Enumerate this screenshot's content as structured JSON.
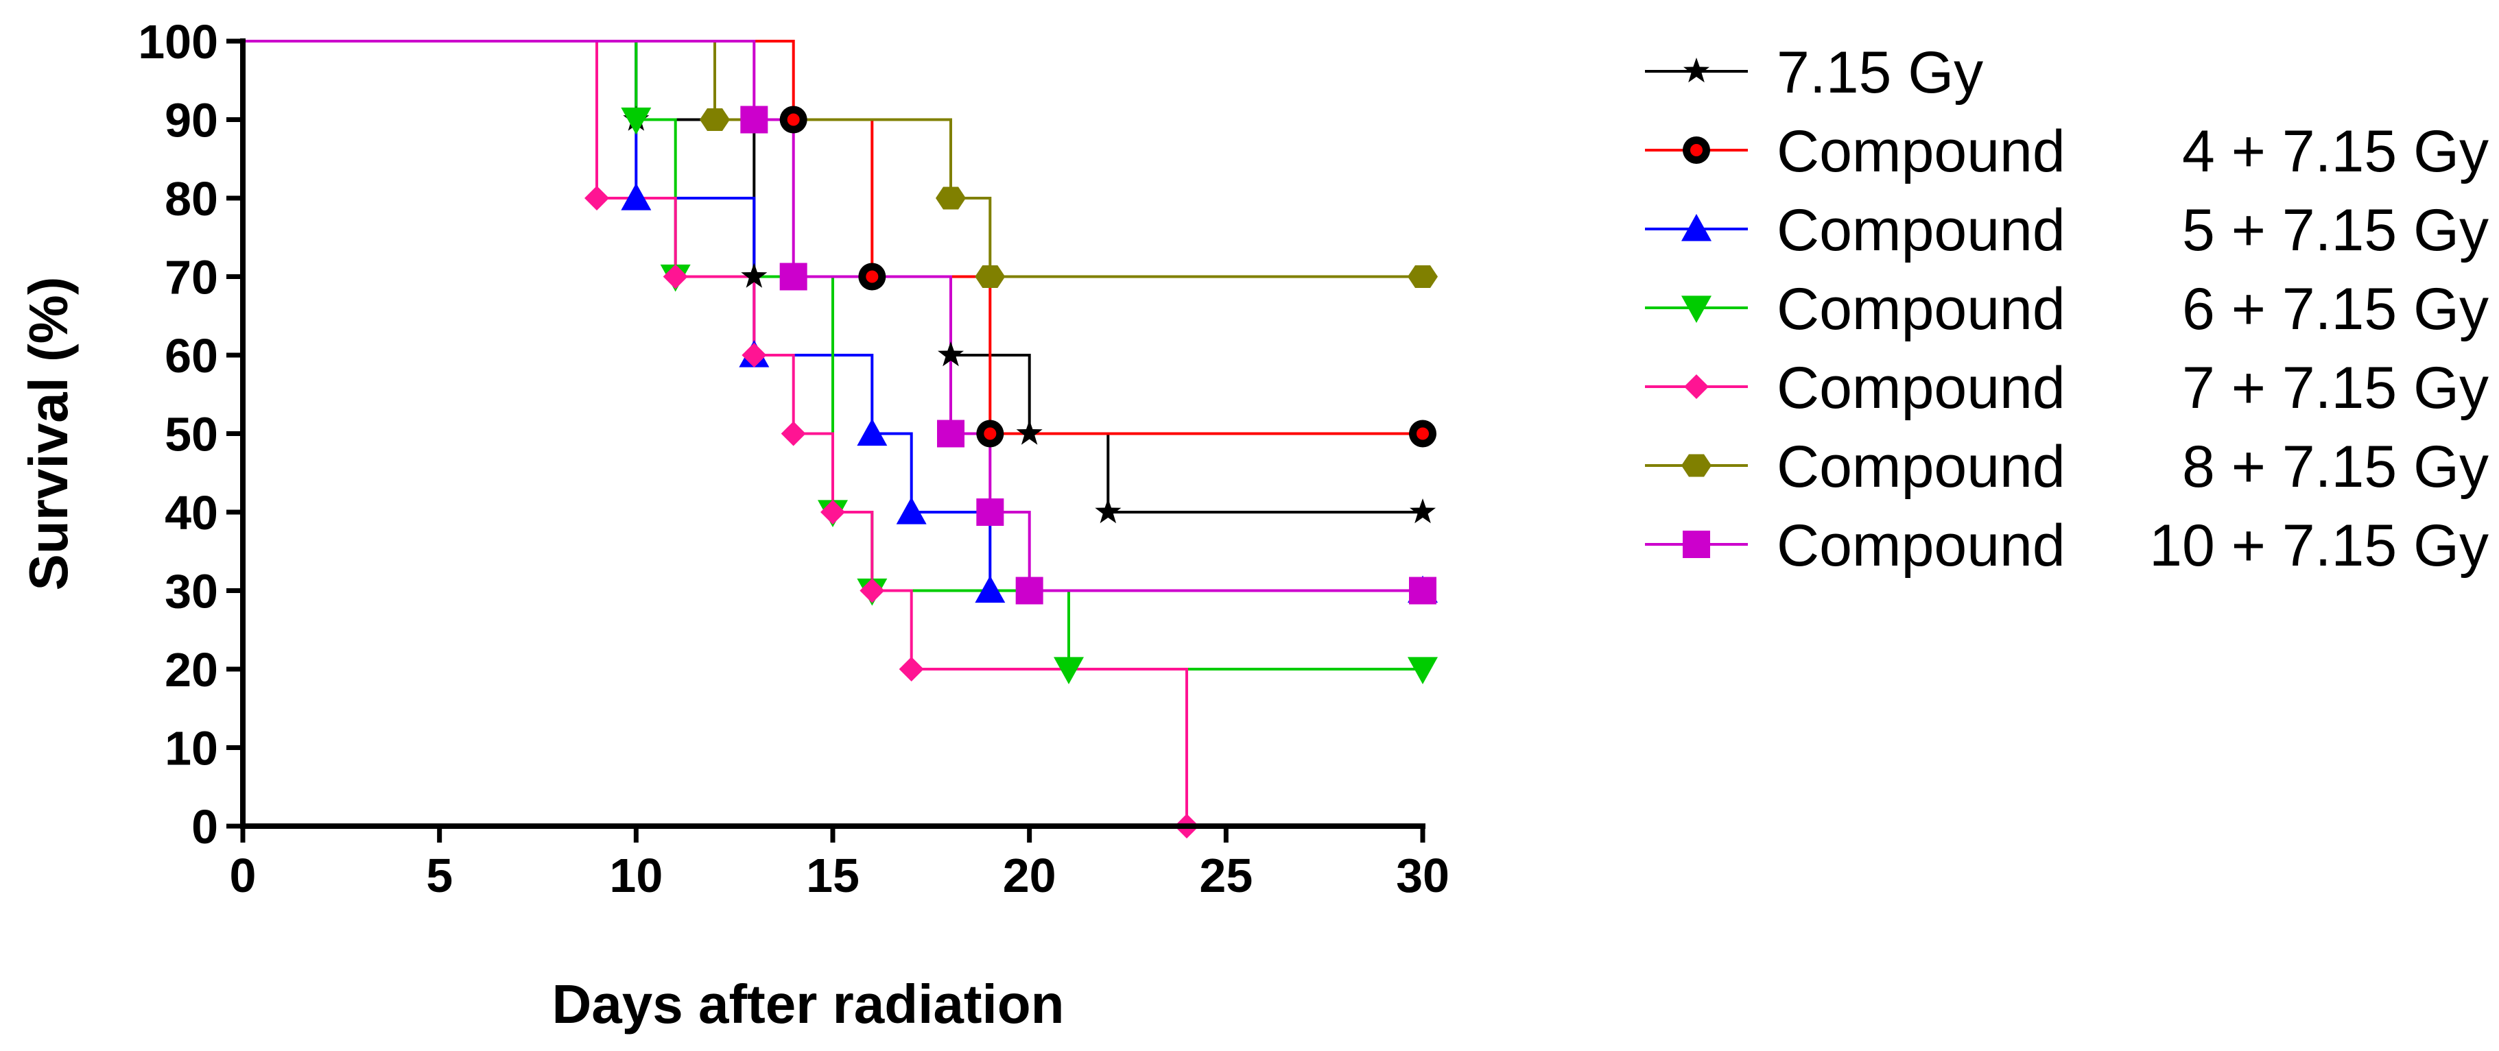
{
  "chart_data": {
    "type": "line",
    "subtype": "kaplan-meier step survival curve",
    "title": "",
    "xlabel": "Days after radiation",
    "ylabel": "Survival (%)",
    "xlim": [
      0,
      30
    ],
    "ylim": [
      0,
      100
    ],
    "xticks": [
      0,
      5,
      10,
      15,
      20,
      25,
      30
    ],
    "yticks": [
      0,
      10,
      20,
      30,
      40,
      50,
      60,
      70,
      80,
      90,
      100
    ],
    "grid": false,
    "legend_position": "right",
    "series": [
      {
        "name": "7.15 Gy",
        "legend_prefix": "7.15 Gy",
        "legend_suffix": "",
        "color": "#000000",
        "marker": "star",
        "steps": [
          [
            0,
            100
          ],
          [
            10,
            90
          ],
          [
            13,
            70
          ],
          [
            18,
            60
          ],
          [
            20,
            50
          ],
          [
            22,
            40
          ],
          [
            30,
            40
          ]
        ],
        "markers": [
          [
            10,
            90
          ],
          [
            13,
            70
          ],
          [
            18,
            60
          ],
          [
            20,
            50
          ],
          [
            22,
            40
          ],
          [
            30,
            40
          ]
        ]
      },
      {
        "name": "Compound 4 + 7.15 Gy",
        "legend_prefix": "Compound",
        "legend_suffix": "4 + 7.15 Gy",
        "color": "#ff0000",
        "marker": "circle",
        "steps": [
          [
            0,
            100
          ],
          [
            14,
            90
          ],
          [
            16,
            70
          ],
          [
            19,
            50
          ],
          [
            30,
            50
          ]
        ],
        "markers": [
          [
            14,
            90
          ],
          [
            16,
            70
          ],
          [
            19,
            50
          ],
          [
            30,
            50
          ]
        ]
      },
      {
        "name": "Compound 5 + 7.15 Gy",
        "legend_prefix": "Compound",
        "legend_suffix": "5 + 7.15 Gy",
        "color": "#0000ff",
        "marker": "triangle-up",
        "steps": [
          [
            0,
            100
          ],
          [
            10,
            80
          ],
          [
            13,
            60
          ],
          [
            16,
            50
          ],
          [
            17,
            40
          ],
          [
            19,
            30
          ],
          [
            30,
            30
          ]
        ],
        "markers": [
          [
            10,
            80
          ],
          [
            13,
            60
          ],
          [
            16,
            50
          ],
          [
            17,
            40
          ],
          [
            19,
            30
          ],
          [
            30,
            30
          ]
        ]
      },
      {
        "name": "Compound 6 + 7.15 Gy",
        "legend_prefix": "Compound",
        "legend_suffix": "6 + 7.15 Gy",
        "color": "#00cc00",
        "marker": "triangle-down",
        "steps": [
          [
            0,
            100
          ],
          [
            10,
            90
          ],
          [
            11,
            70
          ],
          [
            15,
            40
          ],
          [
            16,
            30
          ],
          [
            21,
            20
          ],
          [
            30,
            20
          ]
        ],
        "markers": [
          [
            10,
            90
          ],
          [
            11,
            70
          ],
          [
            15,
            40
          ],
          [
            16,
            30
          ],
          [
            21,
            20
          ],
          [
            30,
            20
          ]
        ]
      },
      {
        "name": "Compound 7 + 7.15 Gy",
        "legend_prefix": "Compound",
        "legend_suffix": "7 + 7.15 Gy",
        "color": "#ff1493",
        "marker": "diamond",
        "steps": [
          [
            0,
            100
          ],
          [
            9,
            80
          ],
          [
            11,
            70
          ],
          [
            13,
            60
          ],
          [
            14,
            50
          ],
          [
            15,
            40
          ],
          [
            16,
            30
          ],
          [
            17,
            20
          ],
          [
            24,
            0
          ]
        ],
        "markers": [
          [
            9,
            80
          ],
          [
            11,
            70
          ],
          [
            13,
            60
          ],
          [
            14,
            50
          ],
          [
            15,
            40
          ],
          [
            16,
            30
          ],
          [
            17,
            20
          ],
          [
            24,
            0
          ]
        ]
      },
      {
        "name": "Compound 8 + 7.15 Gy",
        "legend_prefix": "Compound",
        "legend_suffix": "8 + 7.15 Gy",
        "color": "#808000",
        "marker": "hexagon",
        "steps": [
          [
            0,
            100
          ],
          [
            12,
            90
          ],
          [
            18,
            80
          ],
          [
            19,
            70
          ],
          [
            30,
            70
          ]
        ],
        "markers": [
          [
            12,
            90
          ],
          [
            18,
            80
          ],
          [
            19,
            70
          ],
          [
            30,
            70
          ]
        ]
      },
      {
        "name": "Compound 10 + 7.15 Gy",
        "legend_prefix": "Compound",
        "legend_suffix": "10 + 7.15 Gy",
        "color": "#cc00cc",
        "marker": "square",
        "steps": [
          [
            0,
            100
          ],
          [
            13,
            90
          ],
          [
            14,
            70
          ],
          [
            18,
            50
          ],
          [
            19,
            40
          ],
          [
            20,
            30
          ],
          [
            30,
            30
          ]
        ],
        "markers": [
          [
            13,
            90
          ],
          [
            14,
            70
          ],
          [
            18,
            50
          ],
          [
            19,
            40
          ],
          [
            20,
            30
          ],
          [
            30,
            30
          ]
        ]
      }
    ]
  }
}
